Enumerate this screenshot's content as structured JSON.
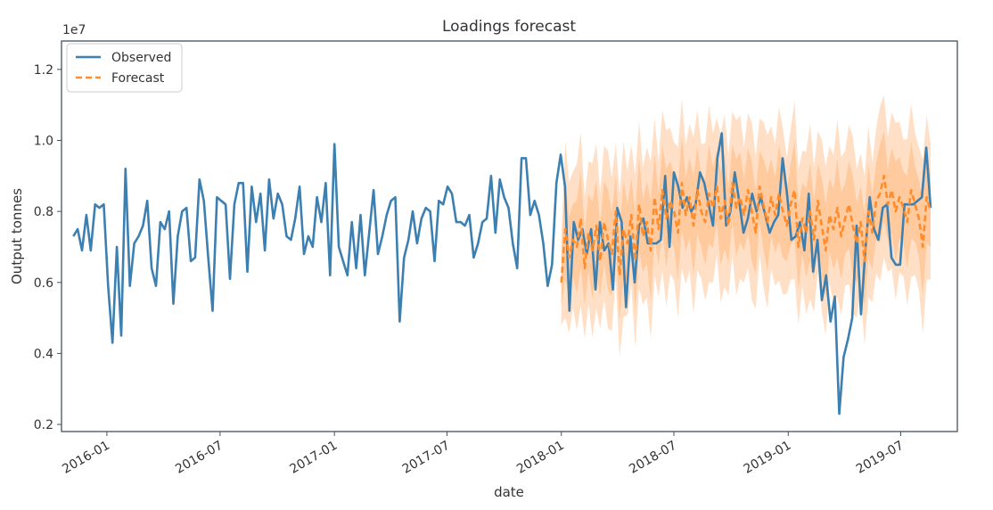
{
  "chart_data": {
    "type": "line",
    "title": "Loadings forecast",
    "xlabel": "date",
    "ylabel": "Output tonnes",
    "y_scale_label": "1e7",
    "ylim": [
      0.18,
      1.28
    ],
    "xlim": [
      "2015-10-20",
      "2019-09-30"
    ],
    "y_ticks": [
      0.2,
      0.4,
      0.6,
      0.8,
      1.0,
      1.2
    ],
    "y_tick_labels": [
      "0.2",
      "0.4",
      "0.6",
      "0.8",
      "1.0",
      "1.2"
    ],
    "x_ticks": [
      "2016-01-01",
      "2016-07-01",
      "2017-01-01",
      "2017-07-01",
      "2018-01-01",
      "2018-07-01",
      "2019-01-01",
      "2019-07-01"
    ],
    "x_tick_labels": [
      "2016-01",
      "2016-07",
      "2017-01",
      "2017-07",
      "2018-01",
      "2018-07",
      "2019-01",
      "2019-07"
    ],
    "grid": false,
    "legend_position": "top-left",
    "colors": {
      "observed": "#3c7fb1",
      "forecast": "#ff8c2a",
      "band": "#ffb476",
      "frame": "#44525e"
    },
    "series": [
      {
        "name": "Observed",
        "style": "solid",
        "points": [
          [
            "2015-11-08",
            0.73
          ],
          [
            "2015-11-15",
            0.75
          ],
          [
            "2015-11-22",
            0.69
          ],
          [
            "2015-11-29",
            0.79
          ],
          [
            "2015-12-06",
            0.69
          ],
          [
            "2015-12-13",
            0.82
          ],
          [
            "2015-12-20",
            0.81
          ],
          [
            "2015-12-27",
            0.82
          ],
          [
            "2016-01-03",
            0.59
          ],
          [
            "2016-01-10",
            0.43
          ],
          [
            "2016-01-17",
            0.7
          ],
          [
            "2016-01-24",
            0.45
          ],
          [
            "2016-01-31",
            0.92
          ],
          [
            "2016-02-07",
            0.59
          ],
          [
            "2016-02-14",
            0.71
          ],
          [
            "2016-02-21",
            0.73
          ],
          [
            "2016-02-28",
            0.76
          ],
          [
            "2016-03-06",
            0.83
          ],
          [
            "2016-03-13",
            0.64
          ],
          [
            "2016-03-20",
            0.59
          ],
          [
            "2016-03-27",
            0.77
          ],
          [
            "2016-04-03",
            0.75
          ],
          [
            "2016-04-10",
            0.8
          ],
          [
            "2016-04-17",
            0.54
          ],
          [
            "2016-04-24",
            0.73
          ],
          [
            "2016-05-01",
            0.8
          ],
          [
            "2016-05-08",
            0.81
          ],
          [
            "2016-05-15",
            0.66
          ],
          [
            "2016-05-22",
            0.67
          ],
          [
            "2016-05-29",
            0.89
          ],
          [
            "2016-06-05",
            0.83
          ],
          [
            "2016-06-12",
            0.67
          ],
          [
            "2016-06-19",
            0.52
          ],
          [
            "2016-06-26",
            0.84
          ],
          [
            "2016-07-03",
            0.83
          ],
          [
            "2016-07-10",
            0.82
          ],
          [
            "2016-07-17",
            0.61
          ],
          [
            "2016-07-24",
            0.82
          ],
          [
            "2016-07-31",
            0.88
          ],
          [
            "2016-08-07",
            0.88
          ],
          [
            "2016-08-14",
            0.63
          ],
          [
            "2016-08-21",
            0.87
          ],
          [
            "2016-08-28",
            0.77
          ],
          [
            "2016-09-04",
            0.85
          ],
          [
            "2016-09-11",
            0.69
          ],
          [
            "2016-09-18",
            0.89
          ],
          [
            "2016-09-25",
            0.78
          ],
          [
            "2016-10-02",
            0.85
          ],
          [
            "2016-10-09",
            0.82
          ],
          [
            "2016-10-16",
            0.73
          ],
          [
            "2016-10-23",
            0.72
          ],
          [
            "2016-10-30",
            0.78
          ],
          [
            "2016-11-06",
            0.87
          ],
          [
            "2016-11-13",
            0.68
          ],
          [
            "2016-11-20",
            0.73
          ],
          [
            "2016-11-27",
            0.7
          ],
          [
            "2016-12-04",
            0.84
          ],
          [
            "2016-12-11",
            0.77
          ],
          [
            "2016-12-18",
            0.88
          ],
          [
            "2016-12-25",
            0.62
          ],
          [
            "2017-01-01",
            0.99
          ],
          [
            "2017-01-08",
            0.7
          ],
          [
            "2017-01-15",
            0.66
          ],
          [
            "2017-01-22",
            0.62
          ],
          [
            "2017-01-29",
            0.77
          ],
          [
            "2017-02-05",
            0.64
          ],
          [
            "2017-02-12",
            0.79
          ],
          [
            "2017-02-19",
            0.62
          ],
          [
            "2017-02-26",
            0.74
          ],
          [
            "2017-03-05",
            0.86
          ],
          [
            "2017-03-12",
            0.68
          ],
          [
            "2017-03-19",
            0.73
          ],
          [
            "2017-03-26",
            0.79
          ],
          [
            "2017-04-02",
            0.83
          ],
          [
            "2017-04-09",
            0.84
          ],
          [
            "2017-04-16",
            0.49
          ],
          [
            "2017-04-23",
            0.67
          ],
          [
            "2017-04-30",
            0.72
          ],
          [
            "2017-05-07",
            0.8
          ],
          [
            "2017-05-14",
            0.71
          ],
          [
            "2017-05-21",
            0.78
          ],
          [
            "2017-05-28",
            0.81
          ],
          [
            "2017-06-04",
            0.8
          ],
          [
            "2017-06-11",
            0.66
          ],
          [
            "2017-06-18",
            0.83
          ],
          [
            "2017-06-25",
            0.82
          ],
          [
            "2017-07-02",
            0.87
          ],
          [
            "2017-07-09",
            0.85
          ],
          [
            "2017-07-16",
            0.77
          ],
          [
            "2017-07-23",
            0.77
          ],
          [
            "2017-07-30",
            0.76
          ],
          [
            "2017-08-06",
            0.79
          ],
          [
            "2017-08-13",
            0.67
          ],
          [
            "2017-08-20",
            0.71
          ],
          [
            "2017-08-27",
            0.77
          ],
          [
            "2017-09-03",
            0.78
          ],
          [
            "2017-09-10",
            0.9
          ],
          [
            "2017-09-17",
            0.74
          ],
          [
            "2017-09-24",
            0.89
          ],
          [
            "2017-10-01",
            0.84
          ],
          [
            "2017-10-08",
            0.81
          ],
          [
            "2017-10-15",
            0.71
          ],
          [
            "2017-10-22",
            0.64
          ],
          [
            "2017-10-29",
            0.95
          ],
          [
            "2017-11-05",
            0.95
          ],
          [
            "2017-11-12",
            0.79
          ],
          [
            "2017-11-19",
            0.83
          ],
          [
            "2017-11-26",
            0.79
          ],
          [
            "2017-12-03",
            0.71
          ],
          [
            "2017-12-10",
            0.59
          ],
          [
            "2017-12-17",
            0.65
          ],
          [
            "2017-12-24",
            0.88
          ],
          [
            "2017-12-31",
            0.96
          ],
          [
            "2018-01-07",
            0.87
          ],
          [
            "2018-01-14",
            0.52
          ],
          [
            "2018-01-21",
            0.77
          ],
          [
            "2018-01-28",
            0.72
          ],
          [
            "2018-02-04",
            0.75
          ],
          [
            "2018-02-11",
            0.68
          ],
          [
            "2018-02-18",
            0.75
          ],
          [
            "2018-02-25",
            0.58
          ],
          [
            "2018-03-04",
            0.77
          ],
          [
            "2018-03-11",
            0.69
          ],
          [
            "2018-03-18",
            0.71
          ],
          [
            "2018-03-25",
            0.58
          ],
          [
            "2018-04-01",
            0.81
          ],
          [
            "2018-04-08",
            0.77
          ],
          [
            "2018-04-15",
            0.53
          ],
          [
            "2018-04-22",
            0.73
          ],
          [
            "2018-04-29",
            0.6
          ],
          [
            "2018-05-06",
            0.76
          ],
          [
            "2018-05-13",
            0.78
          ],
          [
            "2018-05-20",
            0.71
          ],
          [
            "2018-05-27",
            0.71
          ],
          [
            "2018-06-03",
            0.71
          ],
          [
            "2018-06-10",
            0.72
          ],
          [
            "2018-06-17",
            0.9
          ],
          [
            "2018-06-24",
            0.7
          ],
          [
            "2018-07-01",
            0.91
          ],
          [
            "2018-07-08",
            0.87
          ],
          [
            "2018-07-15",
            0.81
          ],
          [
            "2018-07-22",
            0.84
          ],
          [
            "2018-07-29",
            0.8
          ],
          [
            "2018-08-05",
            0.82
          ],
          [
            "2018-08-12",
            0.91
          ],
          [
            "2018-08-19",
            0.88
          ],
          [
            "2018-08-26",
            0.82
          ],
          [
            "2018-09-02",
            0.76
          ],
          [
            "2018-09-09",
            0.95
          ],
          [
            "2018-09-16",
            1.02
          ],
          [
            "2018-09-23",
            0.76
          ],
          [
            "2018-09-30",
            0.8
          ],
          [
            "2018-10-07",
            0.91
          ],
          [
            "2018-10-14",
            0.83
          ],
          [
            "2018-10-21",
            0.74
          ],
          [
            "2018-10-28",
            0.78
          ],
          [
            "2018-11-04",
            0.85
          ],
          [
            "2018-11-11",
            0.8
          ],
          [
            "2018-11-18",
            0.84
          ],
          [
            "2018-11-25",
            0.79
          ],
          [
            "2018-12-02",
            0.74
          ],
          [
            "2018-12-09",
            0.77
          ],
          [
            "2018-12-16",
            0.79
          ],
          [
            "2018-12-23",
            0.95
          ],
          [
            "2018-12-30",
            0.85
          ],
          [
            "2019-01-06",
            0.72
          ],
          [
            "2019-01-13",
            0.73
          ],
          [
            "2019-01-20",
            0.77
          ],
          [
            "2019-01-27",
            0.69
          ],
          [
            "2019-02-03",
            0.85
          ],
          [
            "2019-02-10",
            0.63
          ],
          [
            "2019-02-17",
            0.72
          ],
          [
            "2019-02-24",
            0.55
          ],
          [
            "2019-03-03",
            0.62
          ],
          [
            "2019-03-10",
            0.49
          ],
          [
            "2019-03-17",
            0.56
          ],
          [
            "2019-03-24",
            0.23
          ],
          [
            "2019-03-31",
            0.39
          ],
          [
            "2019-04-07",
            0.44
          ],
          [
            "2019-04-14",
            0.5
          ],
          [
            "2019-04-21",
            0.76
          ],
          [
            "2019-04-28",
            0.51
          ],
          [
            "2019-05-05",
            0.69
          ],
          [
            "2019-05-12",
            0.84
          ],
          [
            "2019-05-19",
            0.75
          ],
          [
            "2019-05-26",
            0.72
          ],
          [
            "2019-06-02",
            0.81
          ],
          [
            "2019-06-09",
            0.82
          ],
          [
            "2019-06-16",
            0.67
          ],
          [
            "2019-06-23",
            0.65
          ],
          [
            "2019-06-30",
            0.65
          ],
          [
            "2019-07-07",
            0.82
          ],
          [
            "2019-07-14",
            0.82
          ],
          [
            "2019-07-21",
            0.82
          ],
          [
            "2019-07-28",
            0.83
          ],
          [
            "2019-08-04",
            0.84
          ],
          [
            "2019-08-11",
            0.98
          ],
          [
            "2019-08-18",
            0.81
          ]
        ]
      },
      {
        "name": "Forecast",
        "style": "dashed",
        "start": "2018-01-01",
        "end": "2019-08-18",
        "values": [
          0.6,
          0.75,
          0.67,
          0.72,
          0.7,
          0.78,
          0.64,
          0.74,
          0.69,
          0.76,
          0.66,
          0.77,
          0.72,
          0.68,
          0.8,
          0.62,
          0.75,
          0.71,
          0.79,
          0.66,
          0.82,
          0.73,
          0.77,
          0.69,
          0.84,
          0.75,
          0.86,
          0.78,
          0.83,
          0.8,
          0.74,
          0.88,
          0.79,
          0.84,
          0.76,
          0.86,
          0.8,
          0.77,
          0.85,
          0.81,
          0.87,
          0.78,
          0.83,
          0.76,
          0.88,
          0.81,
          0.84,
          0.79,
          0.86,
          0.8,
          0.74,
          0.87,
          0.82,
          0.77,
          0.84,
          0.79,
          0.85,
          0.8,
          0.76,
          0.82,
          0.86,
          0.7,
          0.78,
          0.74,
          0.8,
          0.72,
          0.83,
          0.76,
          0.69,
          0.79,
          0.75,
          0.81,
          0.73,
          0.78,
          0.82,
          0.76,
          0.71,
          0.77,
          0.66,
          0.8,
          0.74,
          0.83,
          0.85,
          0.9,
          0.82,
          0.86,
          0.8,
          0.84,
          0.81,
          0.77,
          0.86,
          0.82,
          0.78,
          0.7,
          0.84,
          0.8
        ]
      }
    ],
    "forecast_band": {
      "outer_halfwidth": 0.22,
      "inner_halfwidth": 0.12
    }
  }
}
